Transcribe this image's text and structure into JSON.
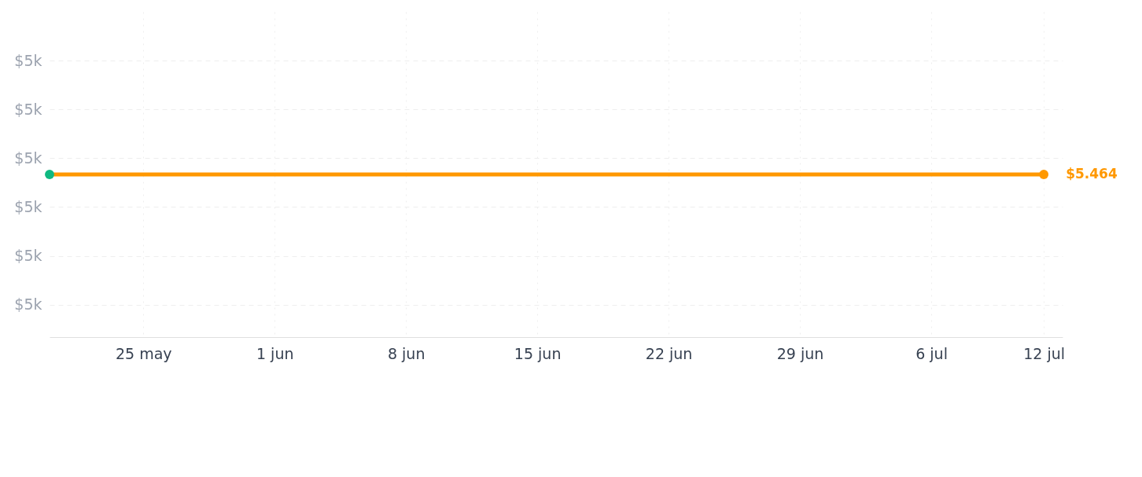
{
  "chart_data": {
    "type": "line",
    "x": [
      "--05-20",
      "--07-12"
    ],
    "series": [
      {
        "color": "#ff9800",
        "colors": [
          "#10b981",
          "#ff9800"
        ],
        "values": [
          5464,
          5464
        ],
        "value_labels": [
          null,
          "$5.464"
        ]
      }
    ],
    "xlim": [
      "--05-20",
      "--07-13"
    ],
    "xticks": [
      {
        "value": "--05-25",
        "label": "25 may"
      },
      {
        "value": "--06-01",
        "label": "1 jun"
      },
      {
        "value": "--06-08",
        "label": "8 jun"
      },
      {
        "value": "--06-15",
        "label": "15 jun"
      },
      {
        "value": "--06-22",
        "label": "22 jun"
      },
      {
        "value": "--06-29",
        "label": "29 jun"
      },
      {
        "value": "--07-06",
        "label": "6 jul"
      },
      {
        "value": "--07-12",
        "label": "12 jul"
      }
    ],
    "ylim": [
      5444,
      5484
    ],
    "yticks": [
      {
        "value": 5448,
        "label": "$5k"
      },
      {
        "value": 5454,
        "label": "$5k"
      },
      {
        "value": 5460,
        "label": "$5k"
      },
      {
        "value": 5466,
        "label": "$5k"
      },
      {
        "value": 5472,
        "label": "$5k"
      },
      {
        "value": 5478,
        "label": "$5k"
      }
    ],
    "grid": true,
    "marker": "circle",
    "line_style": "solid"
  }
}
